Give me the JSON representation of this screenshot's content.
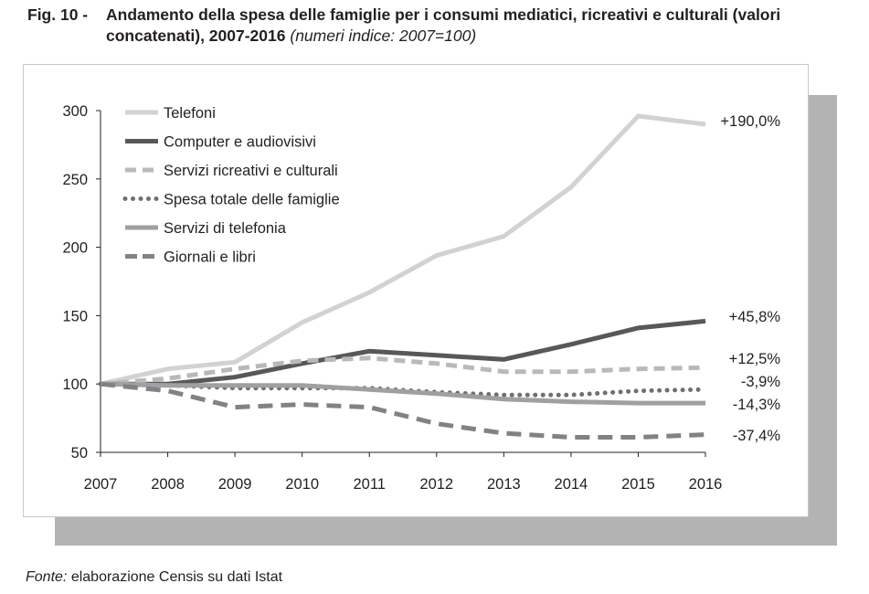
{
  "figure": {
    "number": "Fig. 10 -",
    "title": "Andamento della spesa delle famiglie per i consumi mediatici, ricreativi e culturali (valori concatenati), 2007-2016",
    "subtitle": "(numeri indice: 2007=100)"
  },
  "source": {
    "lead": "Fonte:",
    "text": "elaborazione Censis su dati Istat"
  },
  "chart_data": {
    "type": "line",
    "x": [
      2007,
      2008,
      2009,
      2010,
      2011,
      2012,
      2013,
      2014,
      2015,
      2016
    ],
    "ylim": [
      50,
      300
    ],
    "yticks": [
      50,
      100,
      150,
      200,
      250,
      300
    ],
    "grid": false,
    "legend_position": "top-left",
    "series": [
      {
        "name": "Telefoni",
        "color": "#d2d2d2",
        "style": "solid",
        "values": [
          100,
          111,
          116,
          145,
          167,
          194,
          208,
          244,
          296,
          290
        ],
        "end_label": "+190,0%"
      },
      {
        "name": "Computer e audiovisivi",
        "color": "#58585a",
        "style": "solid",
        "values": [
          100,
          100,
          105,
          115,
          124,
          121,
          118,
          129,
          141,
          146
        ],
        "end_label": "+45,8%"
      },
      {
        "name": "Servizi ricreativi e culturali",
        "color": "#b9b9b9",
        "style": "dashed",
        "values": [
          100,
          104,
          111,
          117,
          119,
          115,
          109,
          109,
          111,
          112
        ],
        "end_label": "+12,5%"
      },
      {
        "name": "Spesa totale delle famiglie",
        "color": "#6f6f71",
        "style": "dotted",
        "values": [
          100,
          99,
          97,
          97,
          97,
          94,
          92,
          92,
          95,
          96
        ],
        "end_label": "-3,9%"
      },
      {
        "name": "Servizi di telefonia",
        "color": "#a0a0a2",
        "style": "solid",
        "values": [
          100,
          99,
          99,
          99,
          96,
          93,
          89,
          87,
          86,
          86
        ],
        "end_label": "-14,3%"
      },
      {
        "name": "Giornali e libri",
        "color": "#828284",
        "style": "longdash",
        "values": [
          100,
          95,
          83,
          85,
          83,
          71,
          64,
          61,
          61,
          63
        ],
        "end_label": "-37,4%"
      }
    ]
  }
}
